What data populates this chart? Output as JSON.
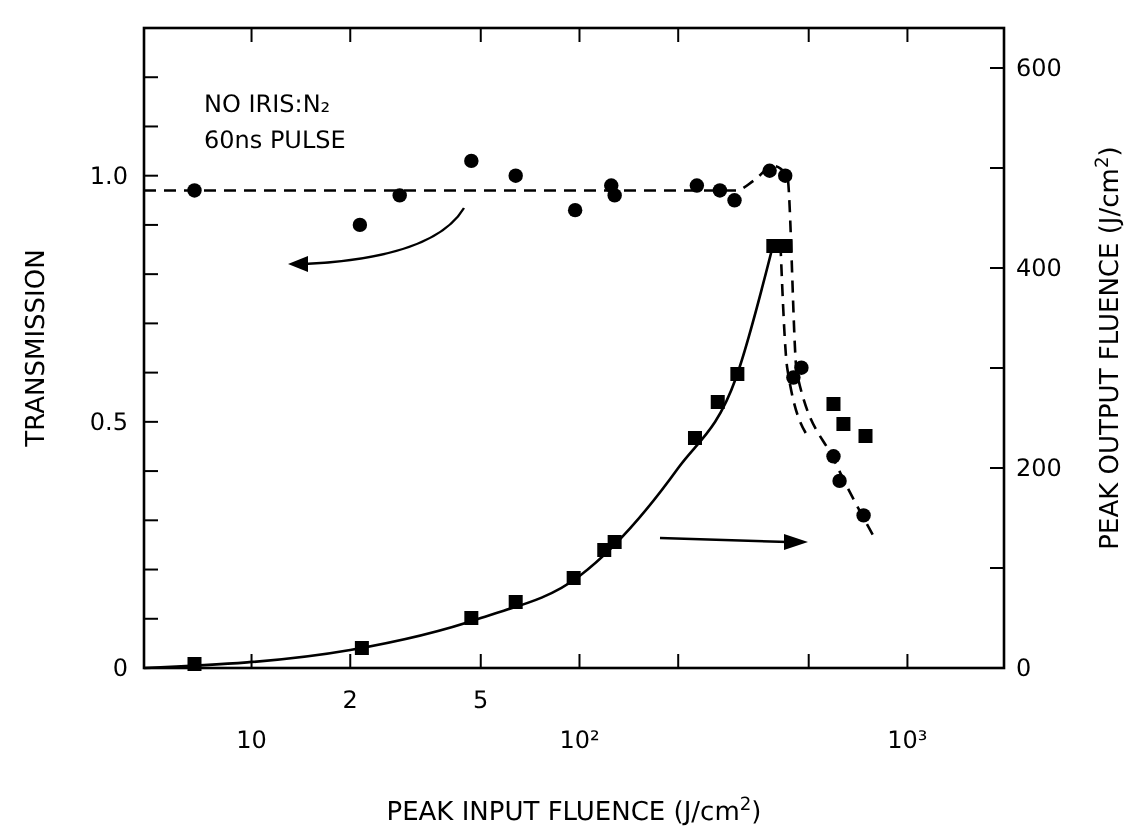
{
  "chart_data": {
    "type": "scatter",
    "xlabel": "PEAK INPUT FLUENCE (J/cm$^{2}$)",
    "ylabel": "TRANSMISSION",
    "y2label": "PEAK OUTPUT FLUENCE (J/cm$^{2}$)",
    "log": "x",
    "grid": false,
    "xlim": [
      4.7,
      1970
    ],
    "xticks": [
      {
        "value": 10,
        "label": "10"
      },
      {
        "value": 20,
        "label": null
      },
      {
        "value": 50,
        "label": null
      },
      {
        "value": 100,
        "label": "10²"
      },
      {
        "value": 200,
        "label": null
      },
      {
        "value": 500,
        "label": null
      },
      {
        "value": 1000,
        "label": "10³"
      }
    ],
    "ylim": [
      0,
      1.3
    ],
    "yticks": [
      0,
      {
        "value": 0.1,
        "label": null
      },
      {
        "value": 0.2,
        "label": null
      },
      {
        "value": 0.3,
        "label": null
      },
      {
        "value": 0.4,
        "label": null
      },
      0.5,
      {
        "value": 0.6,
        "label": null
      },
      {
        "value": 0.7,
        "label": null
      },
      {
        "value": 0.8,
        "label": null
      },
      {
        "value": 0.9,
        "label": null
      },
      {
        "value": 1,
        "label": "1.0"
      },
      {
        "value": 1.1,
        "label": null
      },
      {
        "value": 1.2,
        "label": null
      }
    ],
    "y2lim": [
      0,
      640
    ],
    "y2ticks": [
      0,
      {
        "value": 100,
        "label": null
      },
      200,
      {
        "value": 300,
        "label": null
      },
      400,
      {
        "value": 500,
        "label": null
      },
      600
    ],
    "annotations": [
      "NO IRIS:N₂",
      "60ns PULSE",
      "2",
      "5"
    ],
    "series": [
      {
        "marker": "circle",
        "color": "#000000",
        "x": [
          6.7,
          21.4,
          28.3,
          46.8,
          63.9,
          97,
          125,
          128,
          228,
          268,
          297,
          380,
          424,
          449,
          475,
          595,
          621,
          735
        ],
        "values": [
          0.97,
          0.9,
          0.96,
          1.03,
          1.0,
          0.93,
          0.98,
          0.96,
          0.98,
          0.97,
          0.95,
          1.01,
          1.0,
          0.59,
          0.61,
          0.43,
          0.38,
          0.31
        ]
      },
      {
        "marker": "square",
        "axis": "y2",
        "color": "#000000",
        "x": [
          6.7,
          21.7,
          46.8,
          63.9,
          96,
          119,
          128,
          225,
          264,
          303,
          390,
          425,
          595,
          638,
          745
        ],
        "values": [
          4,
          20,
          50,
          66,
          90,
          118,
          126,
          230,
          266,
          294,
          422,
          422,
          264,
          244,
          232
        ]
      },
      {
        "type": "line",
        "line_style": "dashed",
        "marker": "none",
        "color": "#000000",
        "x": [
          4.7,
          300,
          340,
          390,
          430,
          460,
          600,
          800
        ],
        "values": [
          0.97,
          0.97,
          0.99,
          1.02,
          1.0,
          0.6,
          0.42,
          0.26
        ]
      },
      {
        "type": "line",
        "line_style": "solid",
        "marker": "none",
        "axis": "y2",
        "color": "#000000",
        "x": [
          4.7,
          20,
          50,
          100,
          200,
          300,
          390
        ],
        "values": [
          0,
          18,
          50,
          92,
          200,
          290,
          424
        ]
      },
      {
        "type": "line",
        "line_style": "dashed",
        "marker": "none",
        "axis": "y2",
        "color": "#000000",
        "x": [
          410,
          430,
          500
        ],
        "values": [
          424,
          300,
          230
        ]
      }
    ]
  }
}
